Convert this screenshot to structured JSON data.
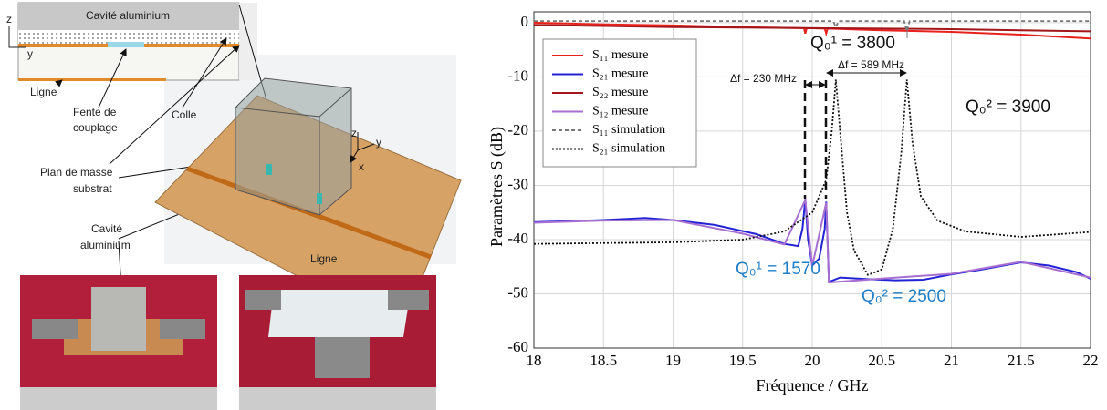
{
  "diagram": {
    "section_title": "Cavité aluminium",
    "section_axis_z": "z",
    "section_axis_y": "y",
    "line_label": "Ligne",
    "slot_label": [
      "Fente de",
      "couplage"
    ],
    "glue_label": "Colle",
    "ground_label": [
      "Plan de masse",
      "substrat"
    ],
    "cavity_label": [
      "Cavité",
      "aluminium"
    ],
    "axes3d": [
      "z",
      "y",
      "x"
    ],
    "photo_line_label": "Ligne"
  },
  "chart_data": {
    "type": "line",
    "xlabel": "Fréquence / GHz",
    "ylabel": "Paramètres S (dB)",
    "xlim": [
      18,
      22
    ],
    "ylim": [
      -60,
      2
    ],
    "xticks": [
      18,
      18.5,
      19,
      19.5,
      20,
      20.5,
      21,
      21.5,
      22
    ],
    "yticks": [
      0,
      -10,
      -20,
      -30,
      -40,
      -50,
      -60
    ],
    "grid": true,
    "legend": "upper left",
    "series": [
      {
        "name": "S₁₁ mesure",
        "color": "#e8211c",
        "dash": "solid",
        "x": [
          18,
          18.5,
          19,
          19.5,
          19.94,
          19.95,
          19.96,
          20.09,
          20.1,
          20.11,
          20.5,
          21,
          21.5,
          22
        ],
        "values": [
          0,
          -0.3,
          -0.5,
          -0.8,
          -1,
          -2,
          -1,
          -1.1,
          -2,
          -1.1,
          -1.4,
          -1.7,
          -2.2,
          -2.9
        ]
      },
      {
        "name": "S₂₁ mesure",
        "color": "#2323d6",
        "dash": "solid",
        "x": [
          18,
          18.5,
          18.8,
          19,
          19.3,
          19.6,
          19.8,
          19.9,
          19.93,
          19.95,
          19.97,
          20,
          20.05,
          20.09,
          20.1,
          20.12,
          20.2,
          20.4,
          20.6,
          20.8,
          21,
          21.2,
          21.5,
          21.7,
          21.9,
          22
        ],
        "values": [
          -36.8,
          -36.4,
          -36,
          -36.4,
          -37.3,
          -39,
          -40.8,
          -41.2,
          -38,
          -32.5,
          -40,
          -44.8,
          -43.5,
          -38,
          -33,
          -47.8,
          -47,
          -47.3,
          -47.5,
          -47.4,
          -46.4,
          -45.6,
          -44.2,
          -44.8,
          -46,
          -47.2
        ]
      },
      {
        "name": "S₂₂ mesure",
        "color": "#a3161a",
        "dash": "solid",
        "x": [
          18,
          18.5,
          19,
          19.5,
          20,
          20.5,
          21,
          21.5,
          22
        ],
        "values": [
          -0.4,
          -0.6,
          -0.8,
          -0.9,
          -1,
          -1.1,
          -1.2,
          -1.4,
          -1.6
        ]
      },
      {
        "name": "S₁₂ mesure",
        "color": "#a66fd1",
        "dash": "solid",
        "x": [
          18,
          18.5,
          19,
          19.5,
          19.8,
          19.95,
          20,
          20.1,
          20.12,
          20.5,
          21,
          21.5,
          22
        ],
        "values": [
          -36.9,
          -36.5,
          -36.4,
          -38.9,
          -40.9,
          -32.7,
          -44.9,
          -33.2,
          -47.9,
          -47.2,
          -46.3,
          -44.1,
          -47
        ]
      },
      {
        "name": "S₁₁ simulation",
        "color": "#777777",
        "dash": "dashed",
        "x": [
          18,
          20.15,
          20.17,
          20.19,
          20.66,
          20.68,
          20.7,
          22
        ],
        "values": [
          0.3,
          0.3,
          -0.8,
          0.3,
          0.3,
          -1.6,
          0.3,
          0.3
        ]
      },
      {
        "name": "S₂₁ simulation",
        "color": "#111111",
        "dash": "dotted",
        "x": [
          18,
          19,
          19.5,
          19.8,
          20,
          20.1,
          20.14,
          20.17,
          20.2,
          20.25,
          20.3,
          20.4,
          20.5,
          20.58,
          20.64,
          20.68,
          20.72,
          20.78,
          20.9,
          21.1,
          21.5,
          22
        ],
        "values": [
          -40.8,
          -40.5,
          -40,
          -38.5,
          -35,
          -29,
          -20,
          -10.5,
          -20,
          -35,
          -42,
          -46.5,
          -45.5,
          -38,
          -24,
          -10.5,
          -22,
          -32,
          -36.5,
          -38.5,
          -39.5,
          -38.6
        ]
      }
    ],
    "annotations": [
      {
        "text": "Q₀¹ = 3800",
        "color": "#111111"
      },
      {
        "text": "Q₀² = 3900",
        "color": "#111111"
      },
      {
        "text": "Q₀¹ = 1570",
        "color": "#1e7ec8"
      },
      {
        "text": "Q₀² = 2500",
        "color": "#1e7ec8"
      },
      {
        "text": "Δf = 230 MHz",
        "color": "#111111"
      },
      {
        "text": "Δf = 589 MHz",
        "color": "#111111"
      }
    ]
  }
}
